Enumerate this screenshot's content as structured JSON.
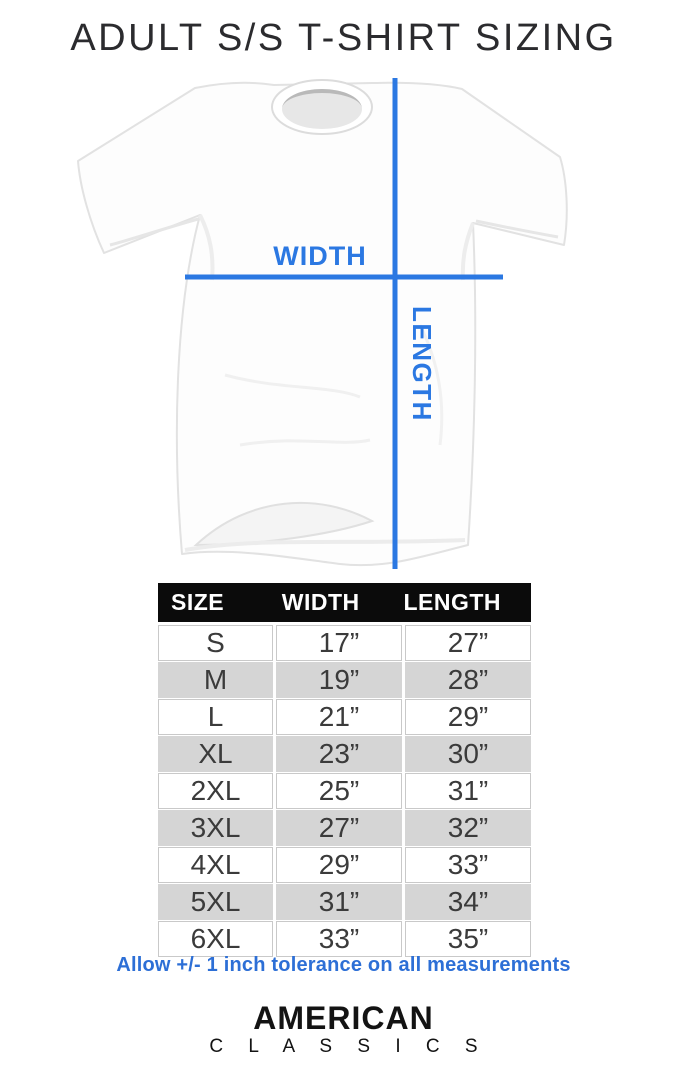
{
  "title": "ADULT S/S T-SHIRT SIZING",
  "diagram": {
    "width_label": "WIDTH",
    "length_label": "LENGTH",
    "line_color": "#2b78e2"
  },
  "size_table": {
    "columns": [
      "SIZE",
      "WIDTH",
      "LENGTH"
    ],
    "rows": [
      {
        "size": "S",
        "width": "17”",
        "length": "27”"
      },
      {
        "size": "M",
        "width": "19”",
        "length": "28”"
      },
      {
        "size": "L",
        "width": "21”",
        "length": "29”"
      },
      {
        "size": "XL",
        "width": "23”",
        "length": "30”"
      },
      {
        "size": "2XL",
        "width": "25”",
        "length": "31”"
      },
      {
        "size": "3XL",
        "width": "27”",
        "length": "32”"
      },
      {
        "size": "4XL",
        "width": "29”",
        "length": "33”"
      },
      {
        "size": "5XL",
        "width": "31”",
        "length": "34”"
      },
      {
        "size": "6XL",
        "width": "33”",
        "length": "35”"
      }
    ],
    "stripe_color": "#d5d5d5",
    "header_bg": "#0b0b0b"
  },
  "tolerance_note": "Allow +/- 1 inch tolerance on all measurements",
  "brand": {
    "line1": "AMERICAN",
    "line2": "C L A S S I C S"
  }
}
